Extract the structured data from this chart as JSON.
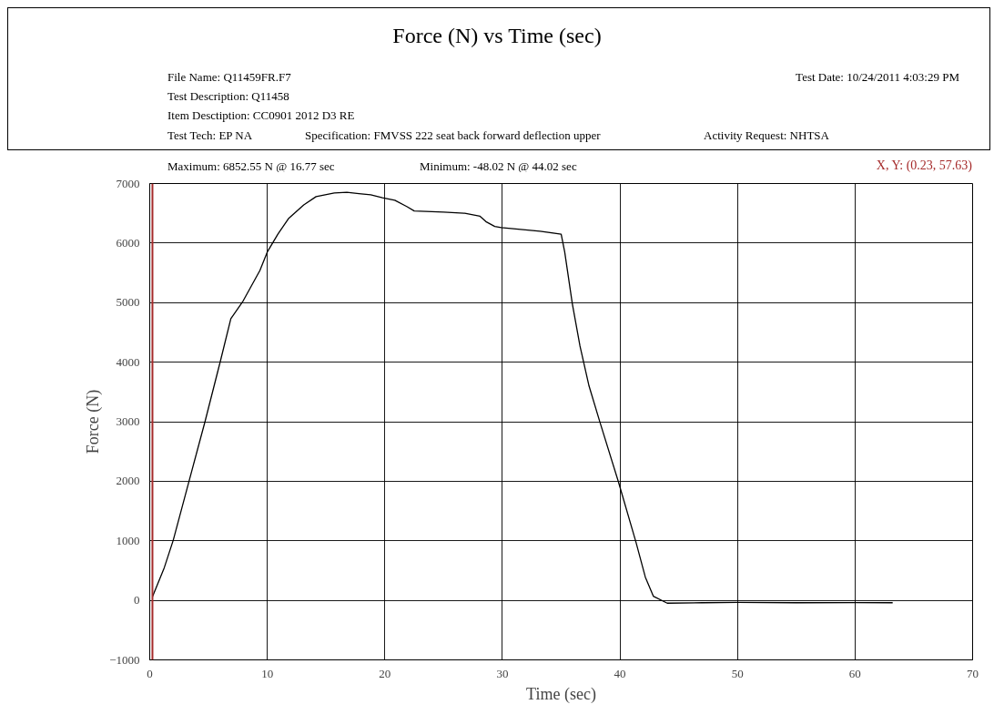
{
  "chart_data": {
    "type": "line",
    "title": "Force (N) vs Time (sec)",
    "xlabel": "Time (sec)",
    "ylabel": "Force (N)",
    "annotations": [
      "File Name: Q11459FR.F7",
      "Test Date: 10/24/2011  4:03:29 PM",
      "Test Description: Q11458",
      "Item Desctiption: CC0901 2012 D3 RE",
      "Test Tech: EP NA",
      "Specification: FMVSS 222 seat back forward deflection upper",
      "Activity Request: NHTSA",
      "Maximum: 6852.55 N @ 16.77 sec",
      "Minimum: -48.02 N @ 44.02 sec",
      "X, Y: (0.23, 57.63)"
    ],
    "series": [
      {
        "color": "#000000",
        "x": [
          0.23,
          1.24,
          2.0,
          3.3,
          4.7,
          6.0,
          6.9,
          7.95,
          9.37,
          10.0,
          10.9,
          11.8,
          13.1,
          14.15,
          15.7,
          16.77,
          17.8,
          18.8,
          19.8,
          20.85,
          21.9,
          22.5,
          25.0,
          26.8,
          28.1,
          28.6,
          29.35,
          29.9,
          33.2,
          35.0,
          35.3,
          35.95,
          36.6,
          37.37,
          38.3,
          39.87,
          41.36,
          42.16,
          42.84,
          44.02,
          47,
          50,
          55,
          60,
          63.2
        ],
        "values": [
          57.63,
          550,
          1010,
          1970,
          3000,
          4010,
          4730,
          5030,
          5540,
          5850,
          6150,
          6410,
          6640,
          6780,
          6840,
          6852.55,
          6830,
          6810,
          6760,
          6720,
          6610,
          6540,
          6520,
          6500,
          6450,
          6360,
          6280,
          6260,
          6200,
          6150,
          5850,
          4980,
          4270,
          3600,
          2990,
          1990,
          980,
          390,
          70,
          -48.02,
          -40,
          -35,
          -40,
          -38,
          -40
        ]
      }
    ],
    "ref_lines": [
      {
        "axis": "x",
        "value": 0.23,
        "color": "#a52a2a"
      }
    ],
    "xlim": [
      0,
      70
    ],
    "xticks": [
      0,
      10,
      20,
      30,
      40,
      50,
      60,
      70
    ],
    "ylim": [
      -1000,
      7000
    ],
    "yticks": [
      -1000,
      0,
      1000,
      2000,
      3000,
      4000,
      5000,
      6000,
      7000
    ],
    "grid": true,
    "marker": "none",
    "line_style": "solid"
  }
}
